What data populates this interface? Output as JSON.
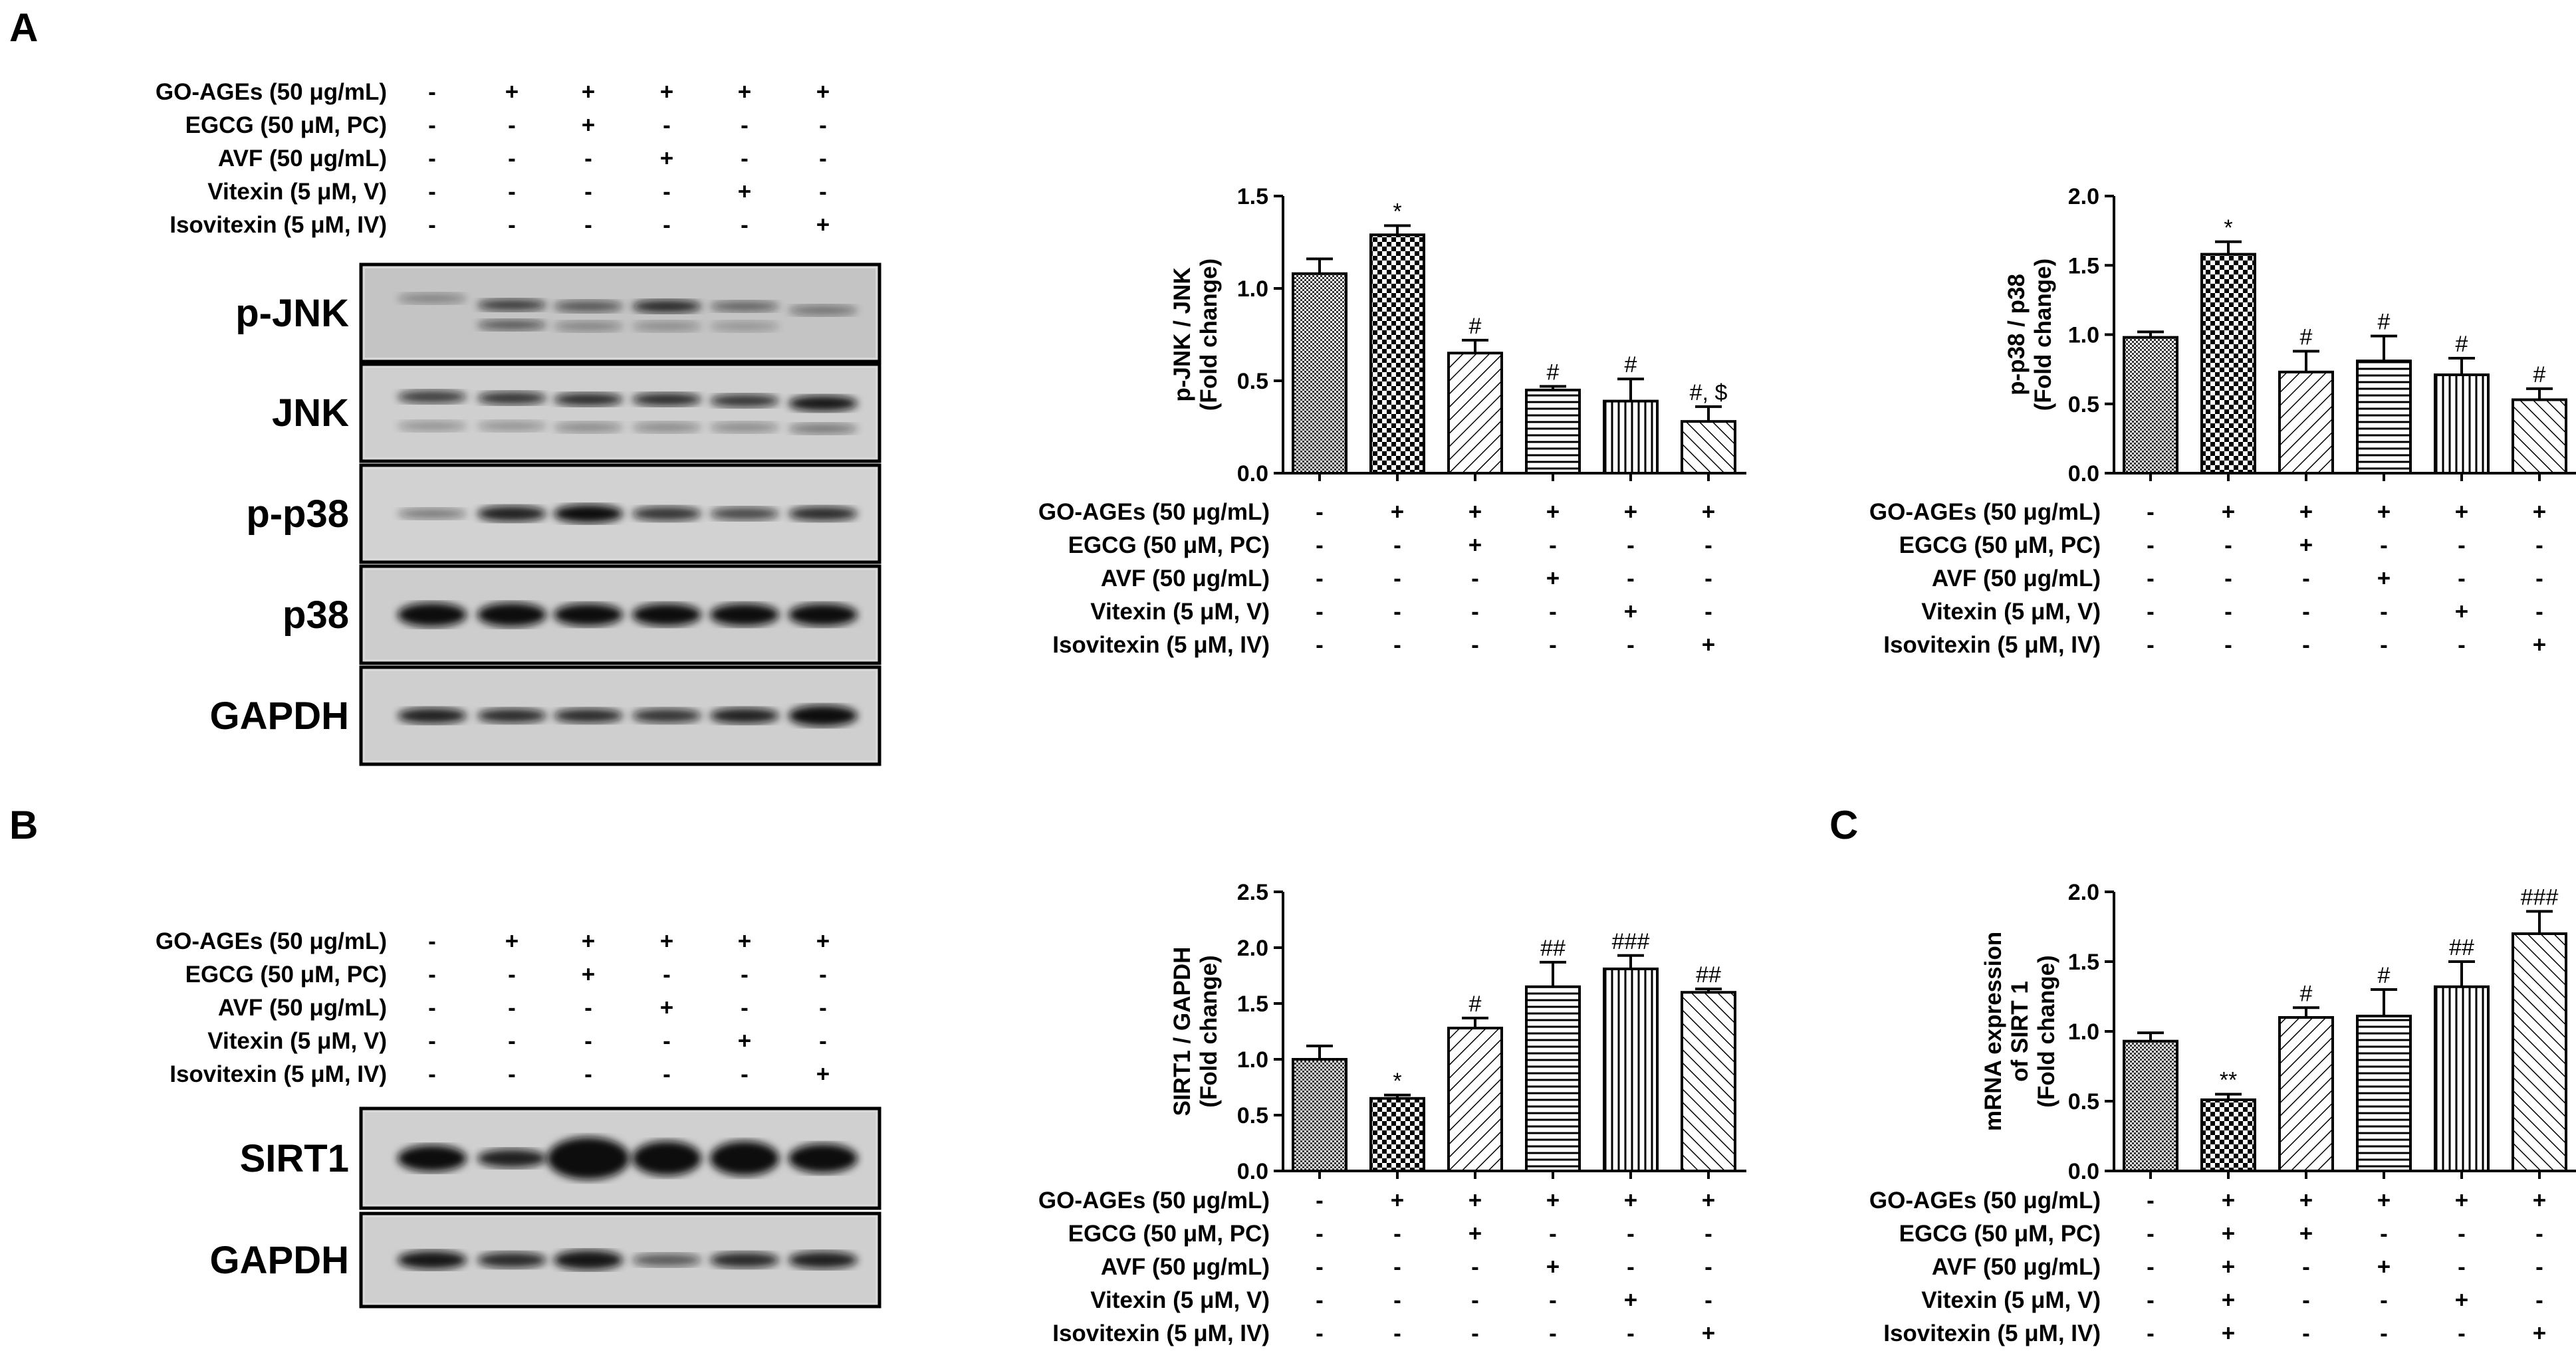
{
  "panels": {
    "A": "A",
    "B": "B",
    "C": "C"
  },
  "treatments": {
    "labels": [
      "GO-AGEs (50 μg/mL)",
      "EGCG (50 μM, PC)",
      "AVF (50 μg/mL)",
      "Vitexin (5 μM, V)",
      "Isovitexin (5 μM, IV)"
    ],
    "symbols_standard": [
      [
        "-",
        "+",
        "+",
        "+",
        "+",
        "+"
      ],
      [
        "-",
        "-",
        "+",
        "-",
        "-",
        "-"
      ],
      [
        "-",
        "-",
        "-",
        "+",
        "-",
        "-"
      ],
      [
        "-",
        "-",
        "-",
        "-",
        "+",
        "-"
      ],
      [
        "-",
        "-",
        "-",
        "-",
        "-",
        "+"
      ]
    ],
    "symbols_mrna": [
      [
        "-",
        "+",
        "+",
        "+",
        "+",
        "+"
      ],
      [
        "-",
        "+",
        "+",
        "-",
        "-",
        "-"
      ],
      [
        "-",
        "+",
        "-",
        "+",
        "-",
        "-"
      ],
      [
        "-",
        "+",
        "-",
        "-",
        "+",
        "-"
      ],
      [
        "-",
        "+",
        "-",
        "-",
        "-",
        "+"
      ]
    ]
  },
  "blots": {
    "A": [
      "p-JNK",
      "JNK",
      "p-p38",
      "p38",
      "GAPDH"
    ],
    "B": [
      "SIRT1",
      "GAPDH"
    ]
  },
  "chart_data": [
    {
      "id": "pjnk",
      "type": "bar",
      "ylabel": [
        "p-JNK / JNK",
        "(Fold change)"
      ],
      "ylim": [
        0,
        1.5
      ],
      "yticks": [
        "0.0",
        "0.5",
        "1.0",
        "1.5"
      ],
      "tick_values": [
        0,
        0.5,
        1.0,
        1.5
      ],
      "values": [
        1.08,
        1.29,
        0.65,
        0.45,
        0.39,
        0.28
      ],
      "errors": [
        0.08,
        0.05,
        0.07,
        0.02,
        0.12,
        0.08
      ],
      "significance": [
        "",
        "*",
        "#",
        "#",
        "#",
        "#, $"
      ],
      "treatment_set": "symbols_standard"
    },
    {
      "id": "pp38",
      "type": "bar",
      "ylabel": [
        "p-p38 / p38",
        "(Fold change)"
      ],
      "ylim": [
        0,
        2.0
      ],
      "yticks": [
        "0.0",
        "0.5",
        "1.0",
        "1.5",
        "2.0"
      ],
      "tick_values": [
        0,
        0.5,
        1.0,
        1.5,
        2.0
      ],
      "values": [
        0.98,
        1.58,
        0.73,
        0.81,
        0.71,
        0.53
      ],
      "errors": [
        0.04,
        0.09,
        0.15,
        0.18,
        0.12,
        0.08
      ],
      "significance": [
        "",
        "*",
        "#",
        "#",
        "#",
        "#"
      ],
      "treatment_set": "symbols_standard"
    },
    {
      "id": "sirt1",
      "type": "bar",
      "ylabel": [
        "SIRT1 / GAPDH",
        "(Fold change)"
      ],
      "ylim": [
        0,
        2.5
      ],
      "yticks": [
        "0.0",
        "0.5",
        "1.0",
        "1.5",
        "2.0",
        "2.5"
      ],
      "tick_values": [
        0,
        0.5,
        1.0,
        1.5,
        2.0,
        2.5
      ],
      "values": [
        1.0,
        0.65,
        1.28,
        1.65,
        1.81,
        1.6
      ],
      "errors": [
        0.12,
        0.03,
        0.09,
        0.22,
        0.12,
        0.03
      ],
      "significance": [
        "",
        "*",
        "#",
        "##",
        "###",
        "##"
      ],
      "treatment_set": "symbols_standard"
    },
    {
      "id": "mrna",
      "type": "bar",
      "ylabel": [
        "mRNA expression",
        "of SIRT 1",
        "(Fold change)"
      ],
      "ylim": [
        0,
        2.0
      ],
      "yticks": [
        "0.0",
        "0.5",
        "1.0",
        "1.5",
        "2.0"
      ],
      "tick_values": [
        0,
        0.5,
        1.0,
        1.5,
        2.0
      ],
      "values": [
        0.93,
        0.51,
        1.1,
        1.11,
        1.32,
        1.7
      ],
      "errors": [
        0.06,
        0.04,
        0.07,
        0.19,
        0.18,
        0.16
      ],
      "significance": [
        "",
        "**",
        "#",
        "#",
        "##",
        "###"
      ],
      "treatment_set": "symbols_mrna"
    }
  ]
}
